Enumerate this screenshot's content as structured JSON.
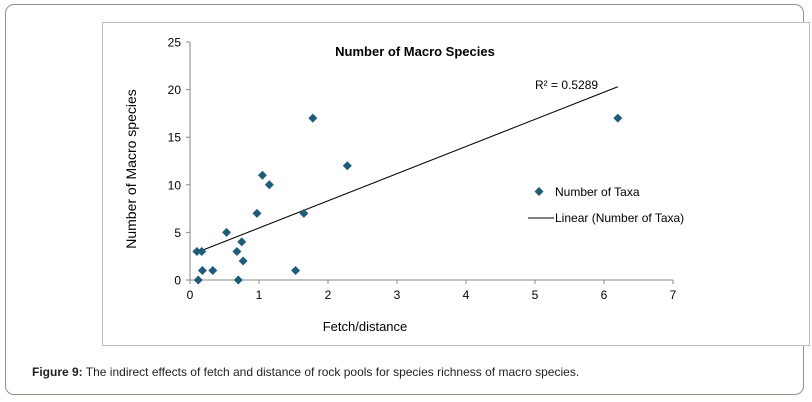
{
  "caption": {
    "label": "Figure 9:",
    "text": "The indirect effects of fetch and distance of rock pools for species richness of macro species."
  },
  "chart_data": {
    "type": "scatter",
    "title": "Number of Macro Species",
    "xlabel": "Fetch/distance",
    "ylabel": "Number of Macro species",
    "xlim": [
      0,
      7
    ],
    "ylim": [
      0,
      25
    ],
    "xticks": [
      "0",
      "1",
      "2",
      "3",
      "4",
      "5",
      "6",
      "7"
    ],
    "yticks": [
      "0",
      "5",
      "10",
      "15",
      "20",
      "25"
    ],
    "grid": false,
    "legend_position": "right",
    "marker_color": "#1f5c7a",
    "line_color": "#000000",
    "series": [
      {
        "name": "Number of Taxa",
        "points": [
          [
            0.1,
            3
          ],
          [
            0.12,
            0
          ],
          [
            0.17,
            3
          ],
          [
            0.18,
            1
          ],
          [
            0.33,
            1
          ],
          [
            0.53,
            5
          ],
          [
            0.68,
            3
          ],
          [
            0.7,
            0
          ],
          [
            0.75,
            4
          ],
          [
            0.77,
            2
          ],
          [
            0.97,
            7
          ],
          [
            1.05,
            11
          ],
          [
            1.15,
            10
          ],
          [
            1.53,
            1
          ],
          [
            1.65,
            7
          ],
          [
            1.78,
            17
          ],
          [
            2.28,
            12
          ],
          [
            6.2,
            17
          ]
        ]
      }
    ],
    "trendline": {
      "name": "Linear (Number of Taxa)",
      "x": [
        0.1,
        6.2
      ],
      "y": [
        2.9,
        20.3
      ],
      "r2_label": "R² = 0.5289"
    }
  }
}
